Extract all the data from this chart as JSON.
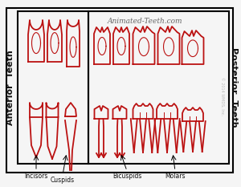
{
  "title": "Animated-Teeth.com",
  "copyright": "© 2014 WMDS, Inc.",
  "left_label": "Anterior  Teeth",
  "right_label": "Posterior  Teeth",
  "bottom_labels": [
    "Incisors",
    "Cuspids",
    "Bicuspids",
    "Molars"
  ],
  "bg_color": "#f5f5f5",
  "tooth_color": "#bb1111",
  "text_color": "#111111",
  "title_color": "#666666"
}
